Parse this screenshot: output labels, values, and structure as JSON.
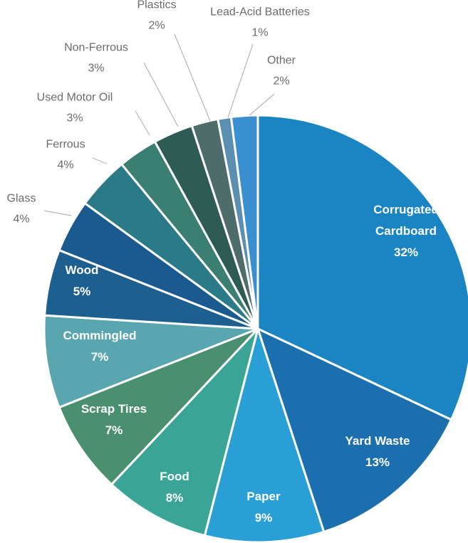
{
  "chart_data": {
    "type": "pie",
    "title": "",
    "slices": [
      {
        "name": "Corrugated Cardboard",
        "value": 32,
        "label_lines": [
          "Corrugated",
          "Cardboard",
          "32%"
        ],
        "color": "#1a85c2"
      },
      {
        "name": "Yard Waste",
        "value": 13,
        "label_lines": [
          "Yard Waste",
          "13%"
        ],
        "color": "#1b6fae"
      },
      {
        "name": "Paper",
        "value": 9,
        "label_lines": [
          "Paper",
          "9%"
        ],
        "color": "#2a9fd6"
      },
      {
        "name": "Food",
        "value": 8,
        "label_lines": [
          "Food",
          "8%"
        ],
        "color": "#3aa596"
      },
      {
        "name": "Scrap Tires",
        "value": 7,
        "label_lines": [
          "Scrap Tires",
          "7%"
        ],
        "color": "#4a8f70"
      },
      {
        "name": "Commingled",
        "value": 7,
        "label_lines": [
          "Commingled",
          "7%"
        ],
        "color": "#5aa6b0"
      },
      {
        "name": "Wood",
        "value": 5,
        "label_lines": [
          "Wood",
          "5%"
        ],
        "color": "#1d5f8e"
      },
      {
        "name": "Glass",
        "value": 4,
        "label_lines": [
          "Glass",
          "4%"
        ],
        "color": "#1a5a8f"
      },
      {
        "name": "Ferrous",
        "value": 4,
        "label_lines": [
          "Ferrous",
          "4%"
        ],
        "color": "#2a7a87"
      },
      {
        "name": "Used Motor Oil",
        "value": 3,
        "label_lines": [
          "Used Motor Oil",
          "3%"
        ],
        "color": "#3a7f72"
      },
      {
        "name": "Non-Ferrous",
        "value": 3,
        "label_lines": [
          "Non-Ferrous",
          "3%"
        ],
        "color": "#2e5c55"
      },
      {
        "name": "Plastics",
        "value": 2,
        "label_lines": [
          "Plastics",
          "2%"
        ],
        "color": "#4e6d6a"
      },
      {
        "name": "Lead-Acid Batteries",
        "value": 1,
        "label_lines": [
          "Lead-Acid Batteries",
          "1%"
        ],
        "color": "#5b8fb0"
      },
      {
        "name": "Other",
        "value": 2,
        "label_lines": [
          "Other",
          "2%"
        ],
        "color": "#3a8fd0"
      }
    ]
  }
}
